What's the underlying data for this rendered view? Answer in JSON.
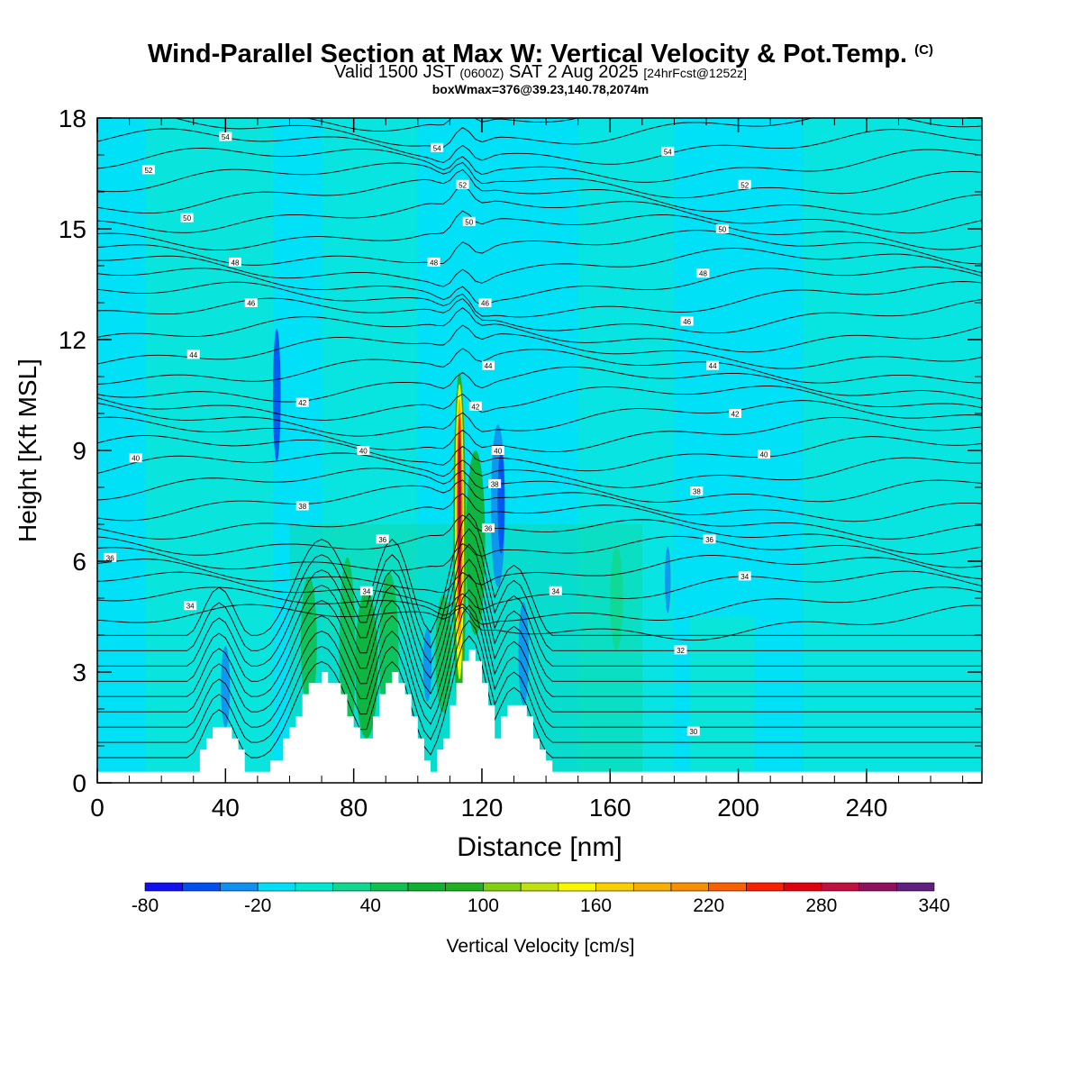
{
  "header": {
    "title_main": "Wind-Parallel Section at Max W: Vertical Velocity & Pot.Temp.",
    "title_mark": "(C)",
    "valid_prefix": "Valid 1500 JST",
    "valid_utc": "(0600Z)",
    "valid_date": "SAT 2 Aug 2025",
    "valid_fcst": "[24hrFcst@1252z]",
    "box_info": "boxWmax=376@39.23,140.78,2074m"
  },
  "chart_data": {
    "type": "heatmap",
    "xlabel": "Distance [nm]",
    "ylabel": "Height [Kft MSL]",
    "xlim": [
      0,
      276
    ],
    "ylim": [
      0,
      18
    ],
    "x_ticks": [
      0,
      40,
      80,
      120,
      160,
      200,
      240
    ],
    "y_ticks": [
      0,
      3,
      6,
      9,
      12,
      15,
      18
    ],
    "colorbar": {
      "label": "Vertical Velocity [cm/s]",
      "levels": [
        -80,
        -60,
        -40,
        -20,
        0,
        20,
        40,
        60,
        80,
        100,
        120,
        140,
        160,
        180,
        200,
        220,
        240,
        260,
        280,
        300,
        320,
        340
      ],
      "tick_labels": [
        "-80",
        "-20",
        "40",
        "100",
        "160",
        "220",
        "280",
        "340"
      ],
      "colors": [
        "#1010f0",
        "#0050f0",
        "#1090f0",
        "#00e0f8",
        "#00e8d0",
        "#10d890",
        "#10c050",
        "#10b030",
        "#20b020",
        "#80d010",
        "#c0e010",
        "#f8f800",
        "#f8d000",
        "#f8b000",
        "#f89000",
        "#f86000",
        "#f82000",
        "#e00010",
        "#c01040",
        "#901060",
        "#602080"
      ]
    },
    "theta_contour_labels": [
      {
        "x": 40,
        "y": 17.5,
        "v": "54"
      },
      {
        "x": 106,
        "y": 17.2,
        "v": "54"
      },
      {
        "x": 178,
        "y": 17.1,
        "v": "54"
      },
      {
        "x": 16,
        "y": 16.6,
        "v": "52"
      },
      {
        "x": 114,
        "y": 16.2,
        "v": "52"
      },
      {
        "x": 202,
        "y": 16.2,
        "v": "52"
      },
      {
        "x": 28,
        "y": 15.3,
        "v": "50"
      },
      {
        "x": 116,
        "y": 15.2,
        "v": "50"
      },
      {
        "x": 195,
        "y": 15.0,
        "v": "50"
      },
      {
        "x": 43,
        "y": 14.1,
        "v": "48"
      },
      {
        "x": 105,
        "y": 14.1,
        "v": "48"
      },
      {
        "x": 189,
        "y": 13.8,
        "v": "48"
      },
      {
        "x": 48,
        "y": 13.0,
        "v": "46"
      },
      {
        "x": 121,
        "y": 13.0,
        "v": "46"
      },
      {
        "x": 184,
        "y": 12.5,
        "v": "46"
      },
      {
        "x": 30,
        "y": 11.6,
        "v": "44"
      },
      {
        "x": 122,
        "y": 11.3,
        "v": "44"
      },
      {
        "x": 192,
        "y": 11.3,
        "v": "44"
      },
      {
        "x": 64,
        "y": 10.3,
        "v": "42"
      },
      {
        "x": 118,
        "y": 10.2,
        "v": "42"
      },
      {
        "x": 199,
        "y": 10.0,
        "v": "42"
      },
      {
        "x": 12,
        "y": 8.8,
        "v": "40"
      },
      {
        "x": 83,
        "y": 9.0,
        "v": "40"
      },
      {
        "x": 125,
        "y": 9.0,
        "v": "40"
      },
      {
        "x": 208,
        "y": 8.9,
        "v": "40"
      },
      {
        "x": 64,
        "y": 7.5,
        "v": "38"
      },
      {
        "x": 124,
        "y": 8.1,
        "v": "38"
      },
      {
        "x": 187,
        "y": 7.9,
        "v": "38"
      },
      {
        "x": 4,
        "y": 6.1,
        "v": "36"
      },
      {
        "x": 89,
        "y": 6.6,
        "v": "36"
      },
      {
        "x": 122,
        "y": 6.9,
        "v": "36"
      },
      {
        "x": 191,
        "y": 6.6,
        "v": "36"
      },
      {
        "x": 29,
        "y": 4.8,
        "v": "34"
      },
      {
        "x": 84,
        "y": 5.2,
        "v": "34"
      },
      {
        "x": 143,
        "y": 5.2,
        "v": "34"
      },
      {
        "x": 202,
        "y": 5.6,
        "v": "34"
      },
      {
        "x": 182,
        "y": 3.6,
        "v": "32"
      },
      {
        "x": 186,
        "y": 1.4,
        "v": "30"
      }
    ]
  }
}
